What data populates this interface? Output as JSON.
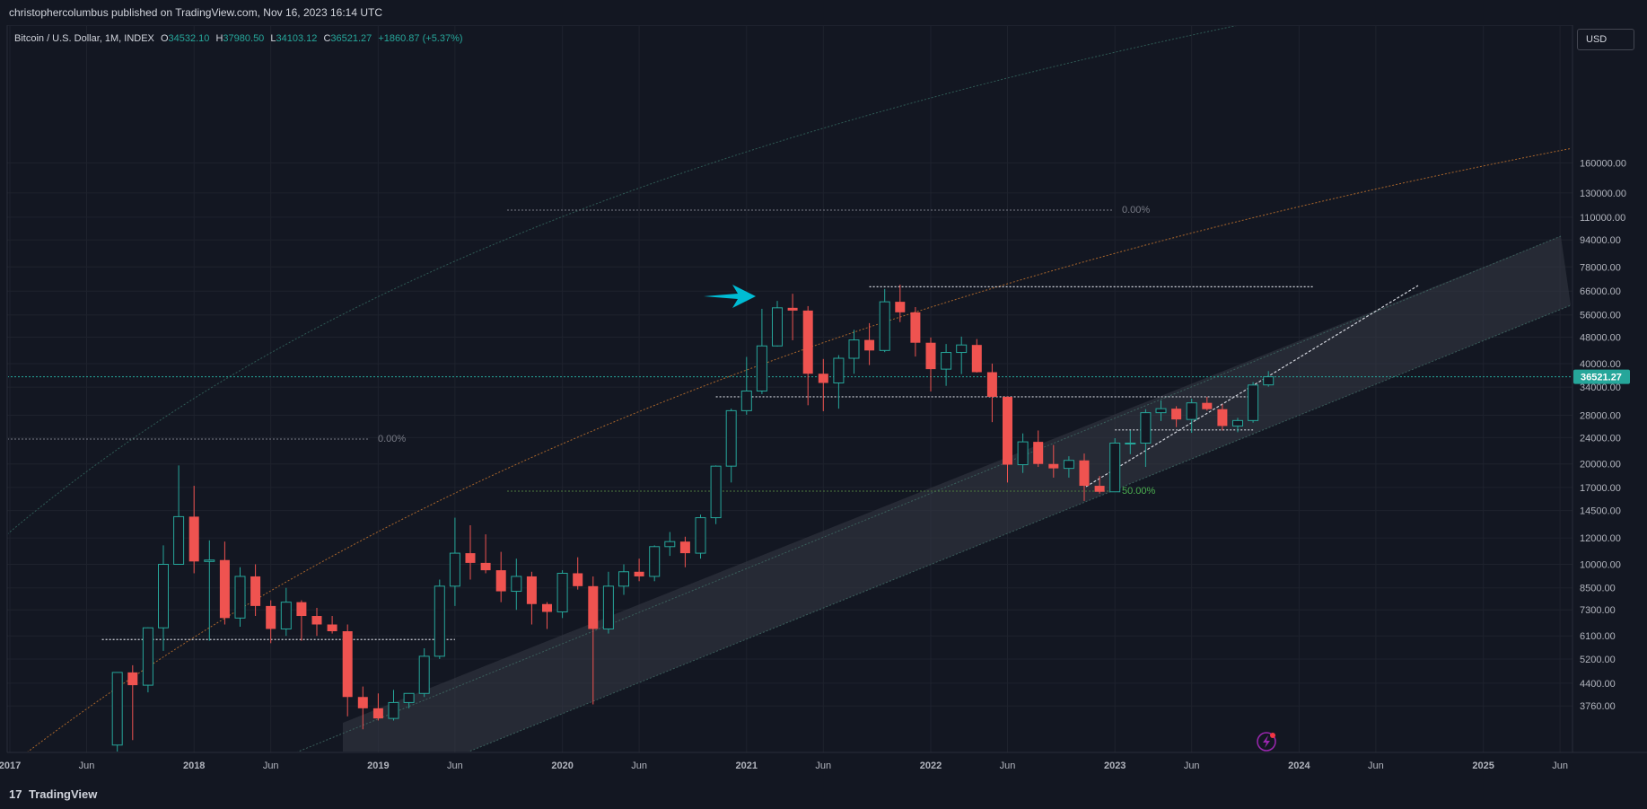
{
  "header": {
    "published": "christophercolumbus published on TradingView.com, Nov 16, 2023 16:14 UTC"
  },
  "legend": {
    "symbol": "Bitcoin / U.S. Dollar, 1M, INDEX",
    "o_label": "O",
    "o_value": "34532.10",
    "h_label": "H",
    "h_value": "37980.50",
    "l_label": "L",
    "l_value": "34103.12",
    "c_label": "C",
    "c_value": "36521.27",
    "change": "+1860.87 (+5.37%)"
  },
  "currency": "USD",
  "footer": {
    "logo_icon": "17",
    "logo_text": "TradingView"
  },
  "colors": {
    "up": "#26a69a",
    "down": "#ef5350",
    "price_tag": "#26a69a",
    "arrow": "#00bcd4",
    "fib_top": "#b2b5be",
    "fib_mid": "#4caf50",
    "log_orange": "#f57c00",
    "log_teal": "#26a69a"
  },
  "icons": {
    "arrow": "arrow-right-icon",
    "lightning": "lightning-icon"
  },
  "chart_data": {
    "type": "candlestick",
    "scale": "log",
    "interval": "1M",
    "ylim": [
      3500,
      190000
    ],
    "y_ticks": [
      {
        "value": 160000,
        "label": "160000.00"
      },
      {
        "value": 130000,
        "label": "130000.00"
      },
      {
        "value": 110000,
        "label": "110000.00"
      },
      {
        "value": 94000,
        "label": "94000.00"
      },
      {
        "value": 78000,
        "label": "78000.00"
      },
      {
        "value": 66000,
        "label": "66000.00"
      },
      {
        "value": 56000,
        "label": "56000.00"
      },
      {
        "value": 48000,
        "label": "48000.00"
      },
      {
        "value": 40000,
        "label": "40000.00"
      },
      {
        "value": 34000,
        "label": "34000.00"
      },
      {
        "value": 28000,
        "label": "28000.00"
      },
      {
        "value": 24000,
        "label": "24000.00"
      },
      {
        "value": 20000,
        "label": "20000.00"
      },
      {
        "value": 17000,
        "label": "17000.00"
      },
      {
        "value": 14500,
        "label": "14500.00"
      },
      {
        "value": 12000,
        "label": "12000.00"
      },
      {
        "value": 10000,
        "label": "10000.00"
      },
      {
        "value": 8500,
        "label": "8500.00"
      },
      {
        "value": 7300,
        "label": "7300.00"
      },
      {
        "value": 6100,
        "label": "6100.00"
      },
      {
        "value": 5200,
        "label": "5200.00"
      },
      {
        "value": 4400,
        "label": "4400.00"
      },
      {
        "value": 3760,
        "label": "3760.00"
      }
    ],
    "x_ticks": [
      {
        "date": "2017-01",
        "label": "2017",
        "bold": true
      },
      {
        "date": "2017-06",
        "label": "Jun",
        "bold": false
      },
      {
        "date": "2018-01",
        "label": "2018",
        "bold": true
      },
      {
        "date": "2018-06",
        "label": "Jun",
        "bold": false
      },
      {
        "date": "2019-01",
        "label": "2019",
        "bold": true
      },
      {
        "date": "2019-06",
        "label": "Jun",
        "bold": false
      },
      {
        "date": "2020-01",
        "label": "2020",
        "bold": true
      },
      {
        "date": "2020-06",
        "label": "Jun",
        "bold": false
      },
      {
        "date": "2021-01",
        "label": "2021",
        "bold": true
      },
      {
        "date": "2021-06",
        "label": "Jun",
        "bold": false
      },
      {
        "date": "2022-01",
        "label": "2022",
        "bold": true
      },
      {
        "date": "2022-06",
        "label": "Jun",
        "bold": false
      },
      {
        "date": "2023-01",
        "label": "2023",
        "bold": true
      },
      {
        "date": "2023-06",
        "label": "Jun",
        "bold": false
      },
      {
        "date": "2024-01",
        "label": "2024",
        "bold": true
      },
      {
        "date": "2024-06",
        "label": "Jun",
        "bold": false
      },
      {
        "date": "2025-01",
        "label": "2025",
        "bold": true
      },
      {
        "date": "2025-06",
        "label": "Jun",
        "bold": false
      }
    ],
    "candles": [
      {
        "date": "2017-08",
        "o": 2870,
        "h": 4750,
        "l": 1830,
        "c": 4740
      },
      {
        "date": "2017-09",
        "o": 4740,
        "h": 4980,
        "l": 2970,
        "c": 4340
      },
      {
        "date": "2017-10",
        "o": 4340,
        "h": 6470,
        "l": 4130,
        "c": 6450
      },
      {
        "date": "2017-11",
        "o": 6450,
        "h": 11400,
        "l": 5500,
        "c": 10000
      },
      {
        "date": "2017-12",
        "o": 10000,
        "h": 19800,
        "l": 10000,
        "c": 13900
      },
      {
        "date": "2018-01",
        "o": 13900,
        "h": 17200,
        "l": 9400,
        "c": 10200
      },
      {
        "date": "2018-02",
        "o": 10200,
        "h": 11800,
        "l": 5900,
        "c": 10300
      },
      {
        "date": "2018-03",
        "o": 10300,
        "h": 11700,
        "l": 6600,
        "c": 6900
      },
      {
        "date": "2018-04",
        "o": 6900,
        "h": 9800,
        "l": 6500,
        "c": 9200
      },
      {
        "date": "2018-05",
        "o": 9200,
        "h": 10000,
        "l": 7000,
        "c": 7500
      },
      {
        "date": "2018-06",
        "o": 7500,
        "h": 7800,
        "l": 5800,
        "c": 6400
      },
      {
        "date": "2018-07",
        "o": 6400,
        "h": 8500,
        "l": 6100,
        "c": 7700
      },
      {
        "date": "2018-08",
        "o": 7700,
        "h": 7800,
        "l": 5900,
        "c": 7000
      },
      {
        "date": "2018-09",
        "o": 7000,
        "h": 7400,
        "l": 6100,
        "c": 6600
      },
      {
        "date": "2018-10",
        "o": 6600,
        "h": 7000,
        "l": 6200,
        "c": 6300
      },
      {
        "date": "2018-11",
        "o": 6300,
        "h": 6600,
        "l": 3500,
        "c": 4000
      },
      {
        "date": "2018-12",
        "o": 4000,
        "h": 4300,
        "l": 3200,
        "c": 3700
      },
      {
        "date": "2019-01",
        "o": 3700,
        "h": 4100,
        "l": 3400,
        "c": 3450
      },
      {
        "date": "2019-02",
        "o": 3450,
        "h": 4200,
        "l": 3400,
        "c": 3850
      },
      {
        "date": "2019-03",
        "o": 3850,
        "h": 4100,
        "l": 3700,
        "c": 4100
      },
      {
        "date": "2019-04",
        "o": 4100,
        "h": 5600,
        "l": 4000,
        "c": 5300
      },
      {
        "date": "2019-05",
        "o": 5300,
        "h": 9000,
        "l": 5200,
        "c": 8600
      },
      {
        "date": "2019-06",
        "o": 8600,
        "h": 13800,
        "l": 7500,
        "c": 10800
      },
      {
        "date": "2019-07",
        "o": 10800,
        "h": 13100,
        "l": 9000,
        "c": 10100
      },
      {
        "date": "2019-08",
        "o": 10100,
        "h": 12300,
        "l": 9400,
        "c": 9600
      },
      {
        "date": "2019-09",
        "o": 9600,
        "h": 10900,
        "l": 7700,
        "c": 8300
      },
      {
        "date": "2019-10",
        "o": 8300,
        "h": 10400,
        "l": 7300,
        "c": 9200
      },
      {
        "date": "2019-11",
        "o": 9200,
        "h": 9500,
        "l": 6600,
        "c": 7600
      },
      {
        "date": "2019-12",
        "o": 7600,
        "h": 7700,
        "l": 6400,
        "c": 7200
      },
      {
        "date": "2020-01",
        "o": 7200,
        "h": 9600,
        "l": 6900,
        "c": 9400
      },
      {
        "date": "2020-02",
        "o": 9400,
        "h": 10500,
        "l": 8400,
        "c": 8600
      },
      {
        "date": "2020-03",
        "o": 8600,
        "h": 9200,
        "l": 3800,
        "c": 6400
      },
      {
        "date": "2020-04",
        "o": 6400,
        "h": 9500,
        "l": 6200,
        "c": 8600
      },
      {
        "date": "2020-05",
        "o": 8600,
        "h": 10000,
        "l": 8100,
        "c": 9500
      },
      {
        "date": "2020-06",
        "o": 9500,
        "h": 10400,
        "l": 8900,
        "c": 9200
      },
      {
        "date": "2020-07",
        "o": 9200,
        "h": 11400,
        "l": 8900,
        "c": 11300
      },
      {
        "date": "2020-08",
        "o": 11300,
        "h": 12500,
        "l": 10600,
        "c": 11700
      },
      {
        "date": "2020-09",
        "o": 11700,
        "h": 12100,
        "l": 9800,
        "c": 10800
      },
      {
        "date": "2020-10",
        "o": 10800,
        "h": 14100,
        "l": 10400,
        "c": 13800
      },
      {
        "date": "2020-11",
        "o": 13800,
        "h": 19800,
        "l": 13200,
        "c": 19700
      },
      {
        "date": "2020-12",
        "o": 19700,
        "h": 29300,
        "l": 17600,
        "c": 28900
      },
      {
        "date": "2021-01",
        "o": 28900,
        "h": 41900,
        "l": 28100,
        "c": 33100
      },
      {
        "date": "2021-02",
        "o": 33100,
        "h": 58400,
        "l": 32400,
        "c": 45200
      },
      {
        "date": "2021-03",
        "o": 45200,
        "h": 61700,
        "l": 45000,
        "c": 58800
      },
      {
        "date": "2021-04",
        "o": 58800,
        "h": 64800,
        "l": 47000,
        "c": 57700
      },
      {
        "date": "2021-05",
        "o": 57700,
        "h": 59500,
        "l": 30000,
        "c": 37300
      },
      {
        "date": "2021-06",
        "o": 37300,
        "h": 41300,
        "l": 28800,
        "c": 35000
      },
      {
        "date": "2021-07",
        "o": 35000,
        "h": 42400,
        "l": 29300,
        "c": 41500
      },
      {
        "date": "2021-08",
        "o": 41500,
        "h": 50500,
        "l": 37300,
        "c": 47100
      },
      {
        "date": "2021-09",
        "o": 47100,
        "h": 52900,
        "l": 39600,
        "c": 43800
      },
      {
        "date": "2021-10",
        "o": 43800,
        "h": 67000,
        "l": 43300,
        "c": 61300
      },
      {
        "date": "2021-11",
        "o": 61300,
        "h": 69000,
        "l": 53300,
        "c": 57000
      },
      {
        "date": "2021-12",
        "o": 57000,
        "h": 59100,
        "l": 42000,
        "c": 46200
      },
      {
        "date": "2022-01",
        "o": 46200,
        "h": 47900,
        "l": 33000,
        "c": 38500
      },
      {
        "date": "2022-02",
        "o": 38500,
        "h": 45800,
        "l": 34300,
        "c": 43200
      },
      {
        "date": "2022-03",
        "o": 43200,
        "h": 48200,
        "l": 37200,
        "c": 45500
      },
      {
        "date": "2022-04",
        "o": 45500,
        "h": 47400,
        "l": 37600,
        "c": 37700
      },
      {
        "date": "2022-05",
        "o": 37700,
        "h": 40000,
        "l": 26700,
        "c": 31800
      },
      {
        "date": "2022-06",
        "o": 31800,
        "h": 31900,
        "l": 17600,
        "c": 19900
      },
      {
        "date": "2022-07",
        "o": 19900,
        "h": 24700,
        "l": 18800,
        "c": 23300
      },
      {
        "date": "2022-08",
        "o": 23300,
        "h": 25200,
        "l": 19600,
        "c": 20000
      },
      {
        "date": "2022-09",
        "o": 20000,
        "h": 22800,
        "l": 18200,
        "c": 19400
      },
      {
        "date": "2022-10",
        "o": 19400,
        "h": 21100,
        "l": 18200,
        "c": 20500
      },
      {
        "date": "2022-11",
        "o": 20500,
        "h": 21500,
        "l": 15500,
        "c": 17200
      },
      {
        "date": "2022-12",
        "o": 17200,
        "h": 18400,
        "l": 16300,
        "c": 16500
      },
      {
        "date": "2023-01",
        "o": 16500,
        "h": 23900,
        "l": 16500,
        "c": 23100
      },
      {
        "date": "2023-02",
        "o": 23100,
        "h": 25200,
        "l": 21400,
        "c": 23100
      },
      {
        "date": "2023-03",
        "o": 23100,
        "h": 29200,
        "l": 19600,
        "c": 28500
      },
      {
        "date": "2023-04",
        "o": 28500,
        "h": 31000,
        "l": 26900,
        "c": 29300
      },
      {
        "date": "2023-05",
        "o": 29300,
        "h": 29800,
        "l": 25800,
        "c": 27200
      },
      {
        "date": "2023-06",
        "o": 27200,
        "h": 31400,
        "l": 24800,
        "c": 30500
      },
      {
        "date": "2023-07",
        "o": 30500,
        "h": 31800,
        "l": 28900,
        "c": 29200
      },
      {
        "date": "2023-08",
        "o": 29200,
        "h": 30200,
        "l": 25200,
        "c": 26000
      },
      {
        "date": "2023-09",
        "o": 26000,
        "h": 27500,
        "l": 24900,
        "c": 27000
      },
      {
        "date": "2023-10",
        "o": 27000,
        "h": 35200,
        "l": 26600,
        "c": 34500
      },
      {
        "date": "2023-11",
        "o": 34532.1,
        "h": 37980.5,
        "l": 34103.12,
        "c": 36521.27
      }
    ],
    "last_price": {
      "value": 36521.27,
      "label": "36521.27"
    },
    "annotations": {
      "fib_top_left": {
        "label": "0.00%",
        "value": 20000
      },
      "fib_top_right": {
        "label": "0.00%",
        "value": 69000
      },
      "fib_mid": {
        "label": "50.00%",
        "value": 15000
      }
    },
    "horizontal_levels": [
      {
        "value": 5950,
        "start": "2017-07",
        "end": "2019-06",
        "style": "dotted"
      },
      {
        "value": 31800,
        "start": "2020-11",
        "end": "2023-10",
        "style": "dotted"
      },
      {
        "value": 25300,
        "start": "2023-01",
        "end": "2023-10",
        "style": "dotted"
      },
      {
        "value": 68000,
        "start": "2021-09",
        "end": "2024-02",
        "style": "dotted"
      }
    ]
  }
}
